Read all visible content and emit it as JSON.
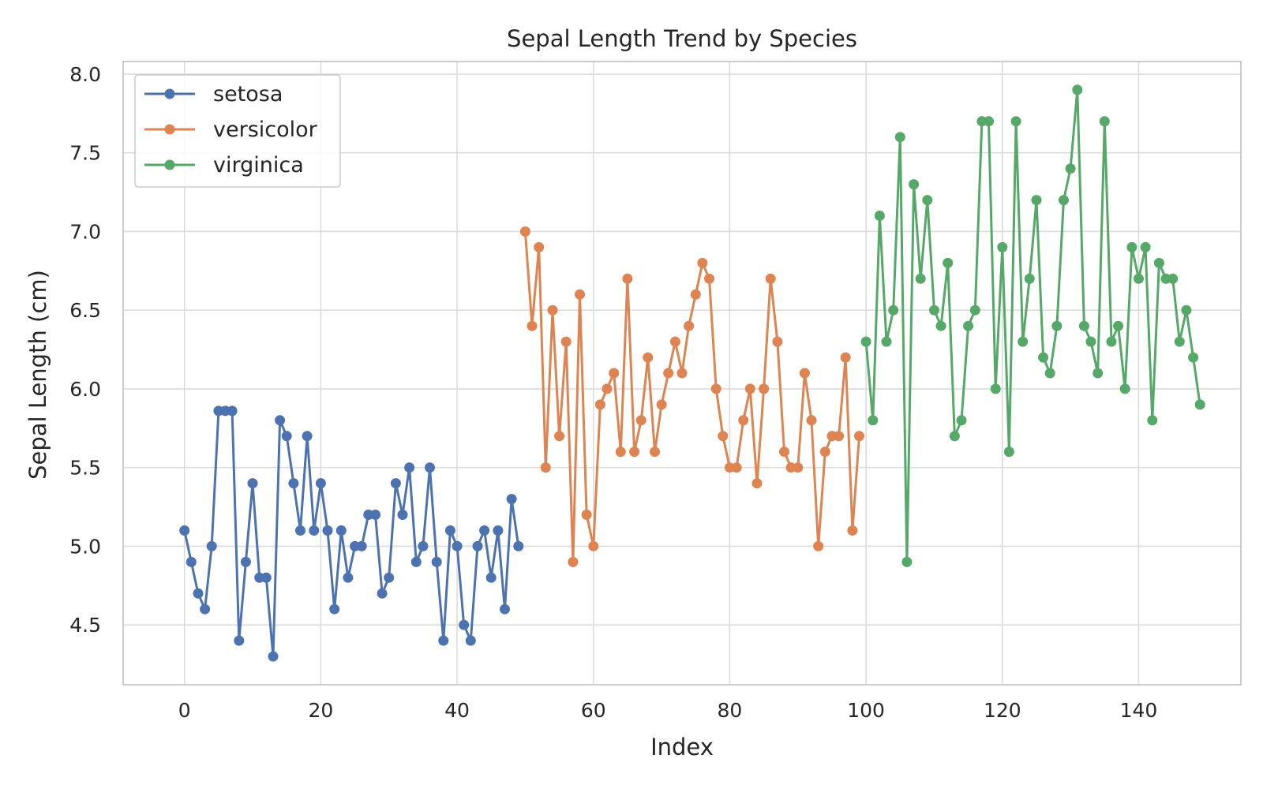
{
  "chart_data": {
    "type": "line",
    "title": "Sepal Length Trend by Species",
    "xlabel": "Index",
    "ylabel": "Sepal Length (cm)",
    "xlim": [
      -9,
      155
    ],
    "ylim": [
      4.12,
      8.08
    ],
    "xticks": [
      0,
      20,
      40,
      60,
      80,
      100,
      120,
      140
    ],
    "yticks": [
      4.5,
      5.0,
      5.5,
      6.0,
      6.5,
      7.0,
      7.5,
      8.0
    ],
    "ytick_labels": [
      "4.5",
      "5.0",
      "5.5",
      "6.0",
      "6.5",
      "7.0",
      "7.5",
      "8.0"
    ],
    "grid": true,
    "legend_position": "top-left",
    "marker": "circle",
    "series": [
      {
        "name": "setosa",
        "color": "#4c72b0",
        "x_start": 0,
        "values": [
          5.1,
          4.9,
          4.7,
          4.6,
          5.0,
          5.86,
          5.86,
          5.86,
          4.4,
          4.9,
          5.4,
          4.8,
          4.8,
          4.3,
          5.8,
          5.7,
          5.4,
          5.1,
          5.7,
          5.1,
          5.4,
          5.1,
          4.6,
          5.1,
          4.8,
          5.0,
          5.0,
          5.2,
          5.2,
          4.7,
          4.8,
          5.4,
          5.2,
          5.5,
          4.9,
          5.0,
          5.5,
          4.9,
          4.4,
          5.1,
          5.0,
          4.5,
          4.4,
          5.0,
          5.1,
          4.8,
          5.1,
          4.6,
          5.3,
          5.0
        ]
      },
      {
        "name": "versicolor",
        "color": "#dd8452",
        "x_start": 50,
        "values": [
          7.0,
          6.4,
          6.9,
          5.5,
          6.5,
          5.7,
          6.3,
          4.9,
          6.6,
          5.2,
          5.0,
          5.9,
          6.0,
          6.1,
          5.6,
          6.7,
          5.6,
          5.8,
          6.2,
          5.6,
          5.9,
          6.1,
          6.3,
          6.1,
          6.4,
          6.6,
          6.8,
          6.7,
          6.0,
          5.7,
          5.5,
          5.5,
          5.8,
          6.0,
          5.4,
          6.0,
          6.7,
          6.3,
          5.6,
          5.5,
          5.5,
          6.1,
          5.8,
          5.0,
          5.6,
          5.7,
          5.7,
          6.2,
          5.1,
          5.7
        ]
      },
      {
        "name": "virginica",
        "color": "#55a868",
        "x_start": 100,
        "values": [
          6.3,
          5.8,
          7.1,
          6.3,
          6.5,
          7.6,
          4.9,
          7.3,
          6.7,
          7.2,
          6.5,
          6.4,
          6.8,
          5.7,
          5.8,
          6.4,
          6.5,
          7.7,
          7.7,
          6.0,
          6.9,
          5.6,
          7.7,
          6.3,
          6.7,
          7.2,
          6.2,
          6.1,
          6.4,
          7.2,
          7.4,
          7.9,
          6.4,
          6.3,
          6.1,
          7.7,
          6.3,
          6.4,
          6.0,
          6.9,
          6.7,
          6.9,
          5.8,
          6.8,
          6.7,
          6.7,
          6.3,
          6.5,
          6.2,
          5.9
        ]
      }
    ]
  }
}
